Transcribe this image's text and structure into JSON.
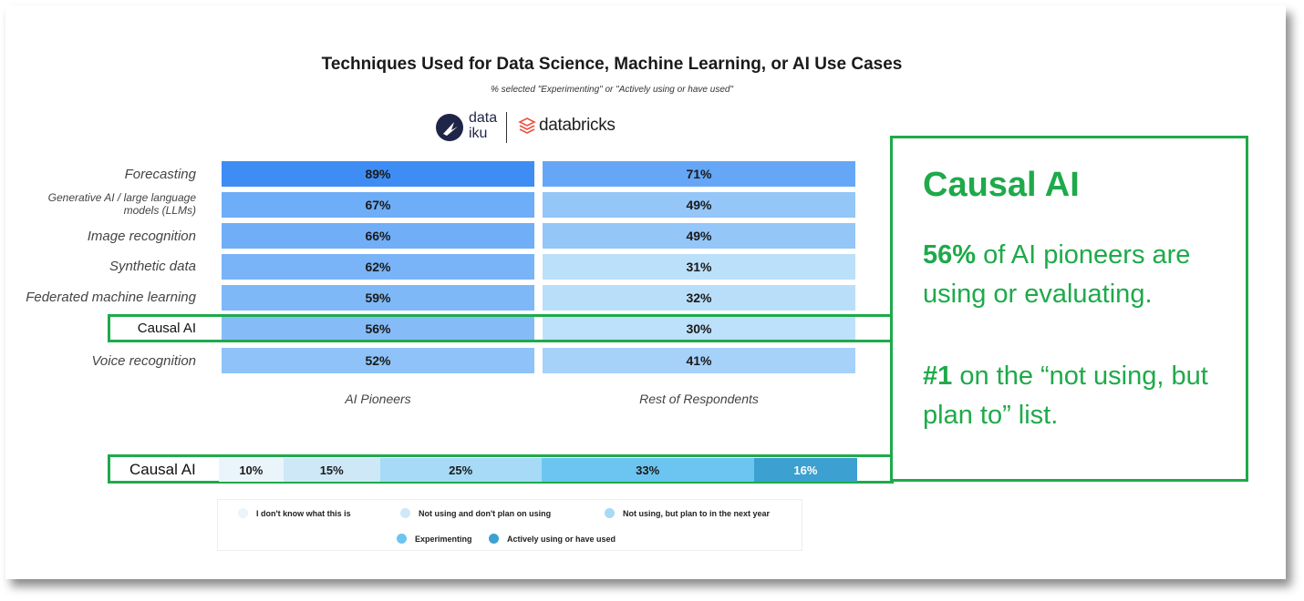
{
  "chart_data": {
    "type": "bar",
    "title": "Techniques Used for Data Science, Machine Learning, or AI Use Cases",
    "subtitle": "% selected \"Experimenting\" or \"Actively using or have used\"",
    "categories": [
      "Forecasting",
      "Generative AI / large language models (LLMs)",
      "Image recognition",
      "Synthetic data",
      "Federated machine learning",
      "Causal AI",
      "Voice recognition"
    ],
    "series": [
      {
        "name": "AI Pioneers",
        "values": [
          89,
          67,
          66,
          62,
          59,
          56,
          52
        ],
        "labels": [
          "89%",
          "67%",
          "66%",
          "62%",
          "59%",
          "56%",
          "52%"
        ]
      },
      {
        "name": "Rest of Respondents",
        "values": [
          71,
          49,
          49,
          31,
          32,
          30,
          41
        ],
        "labels": [
          "71%",
          "49%",
          "49%",
          "31%",
          "32%",
          "30%",
          "41%"
        ]
      }
    ],
    "stacked": {
      "label": "Causal AI",
      "segments": [
        {
          "name": "I don't know what this is",
          "value": 10,
          "label": "10%",
          "color": "#eaf4fb"
        },
        {
          "name": "Not using and don't plan on using",
          "value": 15,
          "label": "15%",
          "color": "#cfe8f8"
        },
        {
          "name": "Not using, but plan to in the next year",
          "value": 25,
          "label": "25%",
          "color": "#a6daf6"
        },
        {
          "name": "Experimenting",
          "value": 33,
          "label": "33%",
          "color": "#6cc5f0"
        },
        {
          "name": "Actively using or have used",
          "value": 16,
          "label": "16%",
          "color": "#3ca0d0"
        }
      ]
    }
  },
  "logos": {
    "dataiku_line1": "data",
    "dataiku_line2": "iku",
    "databricks": "databricks"
  },
  "callout": {
    "heading": "Causal AI",
    "p1_bold": "56%",
    "p1_rest": " of AI pioneers are using or evaluating.",
    "p2_bold": "#1",
    "p2_rest": " on the “not using, but plan to” list."
  },
  "colors": {
    "highlight": "#1eaa4a"
  }
}
